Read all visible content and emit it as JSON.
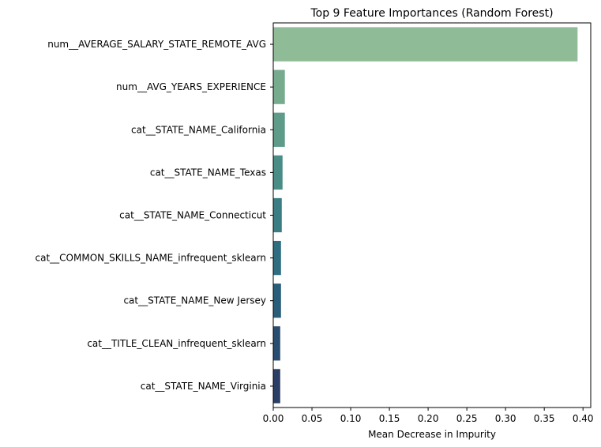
{
  "chart_data": {
    "type": "bar",
    "orientation": "horizontal",
    "title": "Top 9 Feature Importances (Random Forest)",
    "xlabel": "Mean Decrease in Impurity",
    "ylabel": "",
    "xlim": [
      0,
      0.41
    ],
    "xticks": [
      "0.00",
      "0.05",
      "0.10",
      "0.15",
      "0.20",
      "0.25",
      "0.30",
      "0.35",
      "0.40"
    ],
    "grid": false,
    "categories": [
      "num__AVERAGE_SALARY_STATE_REMOTE_AVG",
      "num__AVG_YEARS_EXPERIENCE",
      "cat__STATE_NAME_California",
      "cat__STATE_NAME_Texas",
      "cat__STATE_NAME_Connecticut",
      "cat__COMMON_SKILLS_NAME_infrequent_sklearn",
      "cat__STATE_NAME_New Jersey",
      "cat__TITLE_CLEAN_infrequent_sklearn",
      "cat__STATE_NAME_Virginia"
    ],
    "values": [
      0.393,
      0.015,
      0.015,
      0.012,
      0.011,
      0.01,
      0.01,
      0.009,
      0.009
    ],
    "colors": [
      "#8fbc96",
      "#77ab8e",
      "#5e9c89",
      "#4a8d86",
      "#3a7e84",
      "#2f6d80",
      "#2a5d7a",
      "#294d71",
      "#2a3e66"
    ]
  }
}
